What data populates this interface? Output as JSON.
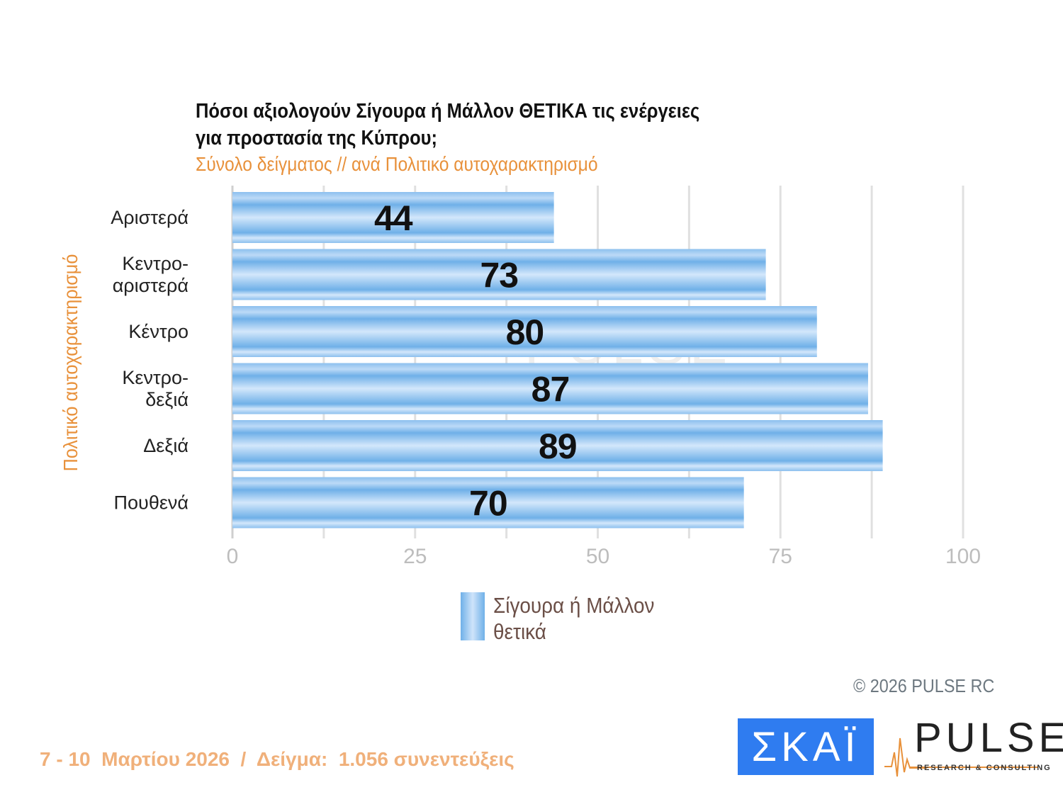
{
  "chart_data": {
    "type": "bar",
    "orientation": "horizontal",
    "title": "Πόσοι αξιολογούν Σίγουρα ή Μάλλον ΘΕΤΙΚΑ τις ενέργειες για προστασία της Κύπρου;",
    "title_lines": [
      "Πόσοι αξιολογούν Σίγουρα ή Μάλλον ΘΕΤΙΚΑ τις ενέργειες",
      "για προστασία της Κύπρου;"
    ],
    "subtitle": "Σύνολο δείγματος // ανά Πολιτικό αυτοχαρακτηρισμό",
    "ylabel": "Πολιτικό αυτοχαρακτηρισμό",
    "xlabel": "",
    "categories": [
      [
        "Αριστερά"
      ],
      [
        "Κεντρο-",
        "αριστερά"
      ],
      [
        "Κέντρο"
      ],
      [
        "Κεντρο-",
        "δεξιά"
      ],
      [
        "Δεξιά"
      ],
      [
        "Πουθενά"
      ]
    ],
    "series": [
      {
        "name": "Σίγουρα ή Μάλλον θετικά",
        "values": [
          44,
          73,
          80,
          87,
          89,
          70
        ],
        "color": "#6fb0e8"
      }
    ],
    "xlim": [
      0,
      100
    ],
    "xticks": [
      "0",
      "25",
      "50",
      "75",
      "100"
    ],
    "grid": true,
    "legend_position": "bottom-center",
    "legend_lines": [
      "Σίγουρα ή Μάλλον",
      "θετικά"
    ]
  },
  "watermark": "PULSE",
  "copyright": "©  2026  PULSE RC",
  "footer": "7 - 10  Μαρτίου 2026  /  Δείγμα:  1.056 συνεντεύξεις",
  "logos": {
    "skai": "ΣΚΑΪ",
    "pulse": "PULSE",
    "pulse_sub": "RESEARCH & CONSULTING"
  },
  "colors": {
    "accent": "#e8913b",
    "bar": "#6fb0e8",
    "skai": "#2f7cf0"
  }
}
